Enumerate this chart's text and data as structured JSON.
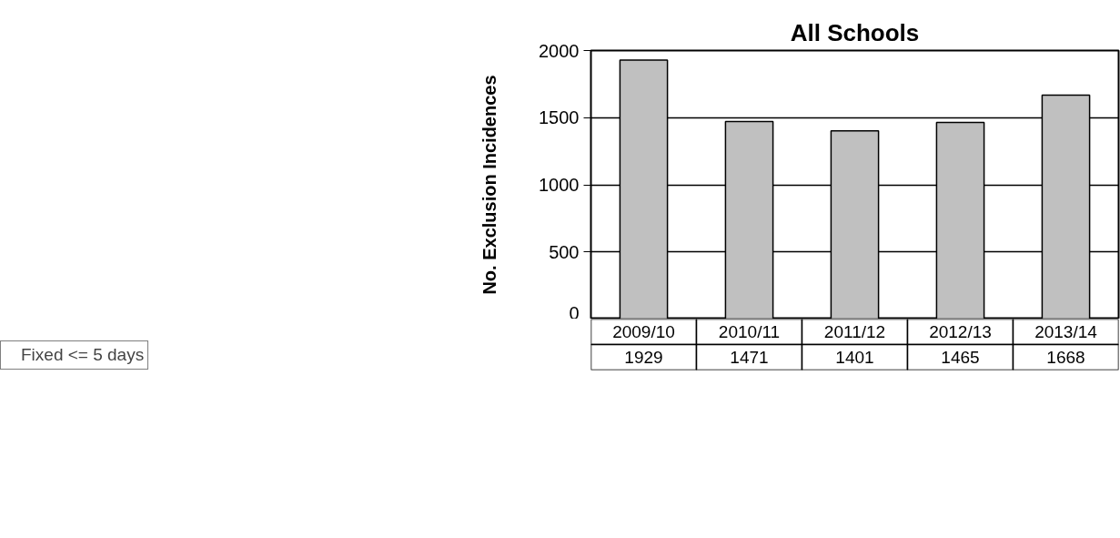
{
  "chart_data": {
    "type": "bar",
    "title": "All Schools",
    "ylabel": "No. Exclusion Incidences",
    "categories": [
      "2009/10",
      "2010/11",
      "2011/12",
      "2012/13",
      "2013/14"
    ],
    "series": [
      {
        "name": "Fixed <= 5 days",
        "color": "#c0c0c0",
        "values": [
          1929,
          1471,
          1401,
          1465,
          1668
        ]
      }
    ],
    "ylim": [
      0,
      2000
    ],
    "yticks": [
      0,
      500,
      1000,
      1500,
      2000
    ],
    "grid": "y",
    "legend": "bottom left",
    "data_labels": true
  }
}
